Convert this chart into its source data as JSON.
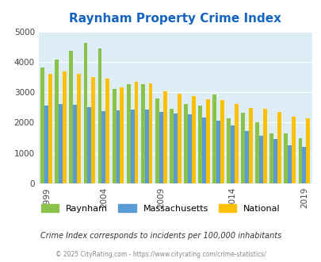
{
  "title": "Raynham Property Crime Index",
  "years": [
    1999,
    2000,
    2002,
    2003,
    2004,
    2006,
    2007,
    2008,
    2009,
    2010,
    2011,
    2012,
    2013,
    2014,
    2015,
    2016,
    2017,
    2018,
    2019
  ],
  "raynham": [
    3820,
    4080,
    4360,
    4620,
    4430,
    3110,
    3260,
    3270,
    2800,
    2460,
    2600,
    2560,
    2920,
    2140,
    2320,
    2000,
    1650,
    1640,
    1490
  ],
  "massachusetts": [
    2560,
    2610,
    2590,
    2500,
    2380,
    2400,
    2440,
    2440,
    2340,
    2290,
    2260,
    2160,
    2070,
    1900,
    1730,
    1560,
    1470,
    1260,
    1210
  ],
  "national": [
    3600,
    3680,
    3600,
    3510,
    3450,
    3150,
    3340,
    3290,
    3040,
    2950,
    2880,
    2760,
    2730,
    2600,
    2490,
    2450,
    2360,
    2200,
    2130
  ],
  "color_raynham": "#8bc34a",
  "color_massachusetts": "#5b9bd5",
  "color_national": "#ffc000",
  "plot_bg": "#ddeef6",
  "ylabel_values": [
    0,
    1000,
    2000,
    3000,
    4000,
    5000
  ],
  "ylim": [
    0,
    5000
  ],
  "tick_years": [
    1999,
    2004,
    2009,
    2014,
    2019
  ],
  "title_color": "#1565C0",
  "subtitle": "Crime Index corresponds to incidents per 100,000 inhabitants",
  "footer": "© 2025 CityRating.com - https://www.cityrating.com/crime-statistics/",
  "legend_labels": [
    "Raynham",
    "Massachusetts",
    "National"
  ]
}
